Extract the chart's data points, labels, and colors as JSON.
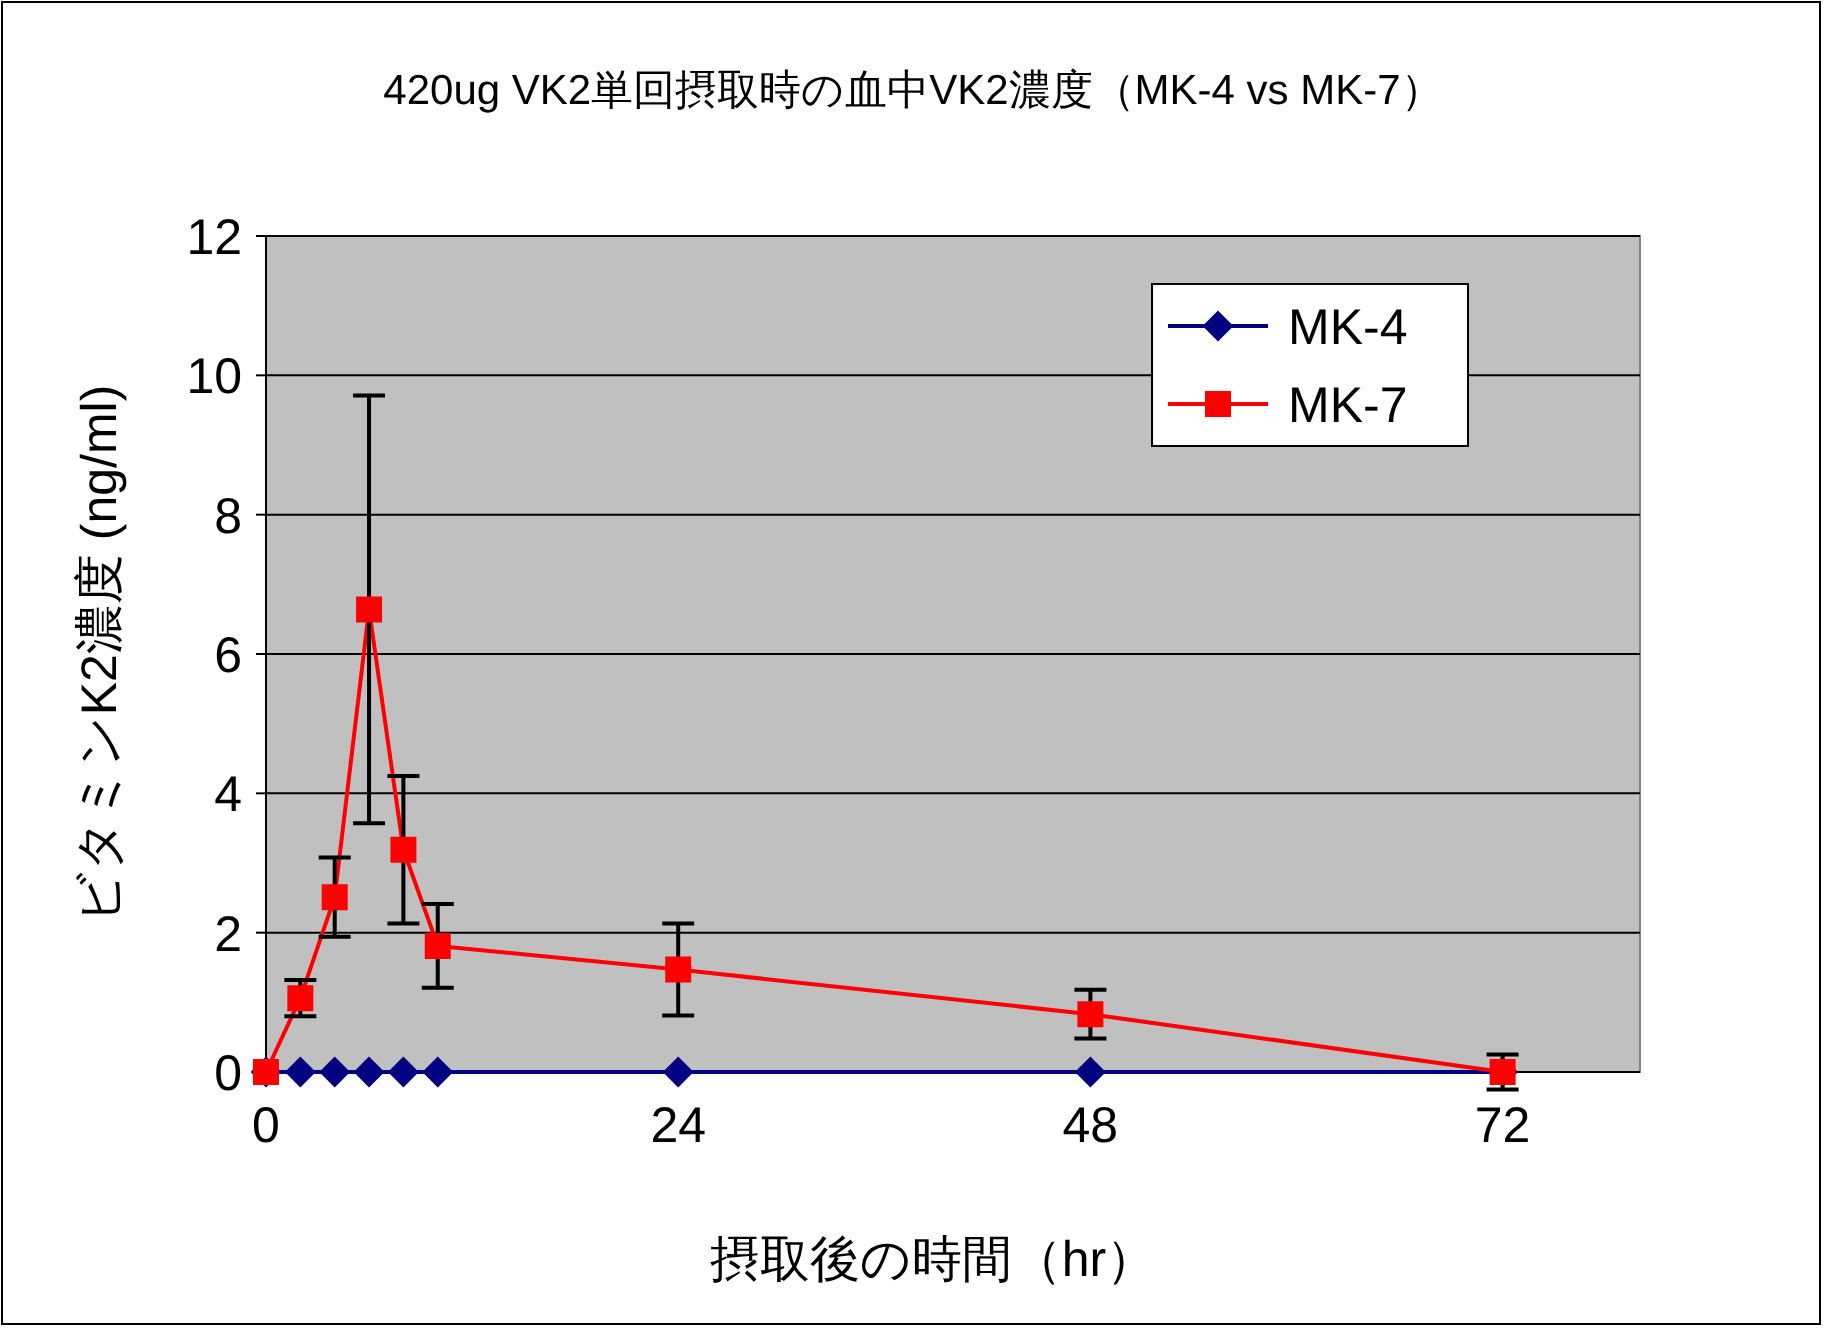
{
  "chart_data": {
    "type": "line",
    "title": "420ug VK2単回摂取時の血中VK2濃度（MK-4 vs MK-7）",
    "xlabel": "摂取後の時間（hr）",
    "ylabel": "ビタミンK2濃度 (ng/ml)",
    "x": [
      0,
      2,
      4,
      6,
      8,
      10,
      24,
      48,
      72
    ],
    "xlim": [
      0,
      80
    ],
    "xticks": [
      0,
      24,
      48,
      72
    ],
    "ylim": [
      0,
      12
    ],
    "yticks": [
      0,
      2,
      4,
      6,
      8,
      10,
      12
    ],
    "grid": "y",
    "legend": "top right",
    "line_style": "solid",
    "series": [
      {
        "name": "MK-4",
        "color": "#000080",
        "marker": "diamond",
        "values": [
          0,
          0,
          0,
          0,
          0,
          0,
          0,
          0,
          0
        ]
      },
      {
        "name": "MK-7",
        "color": "#ff0000",
        "marker": "square",
        "values": [
          0,
          1.06,
          2.51,
          6.64,
          3.19,
          1.81,
          1.47,
          0.83,
          0
        ],
        "errors": [
          null,
          0.26,
          0.57,
          3.07,
          1.06,
          0.6,
          0.66,
          0.35,
          0.25
        ]
      }
    ]
  }
}
